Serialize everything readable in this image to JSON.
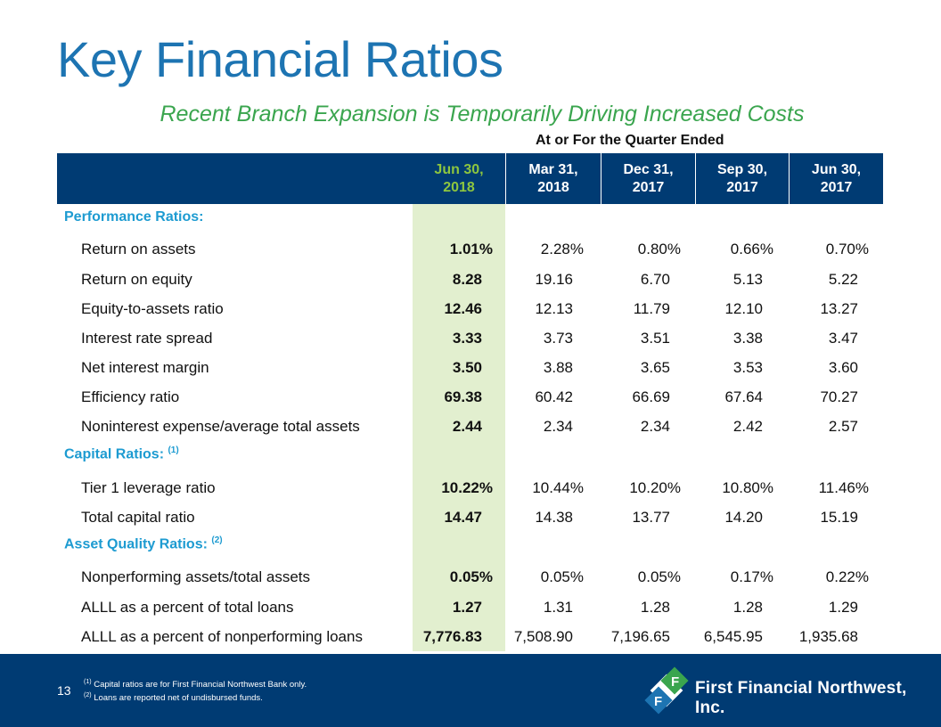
{
  "title": "Key Financial Ratios",
  "subtitle": "Recent Branch Expansion is Temporarily Driving Increased Costs",
  "period_header": "At or For the Quarter Ended",
  "columns": [
    "Jun 30,\n2018",
    "Mar 31,\n2018",
    "Dec 31,\n2017",
    "Sep 30,\n2017",
    "Jun 30,\n2017"
  ],
  "sections": [
    {
      "label": "Performance Ratios:",
      "footnote": ""
    },
    {
      "label": "Capital Ratios:",
      "footnote": "(1)"
    },
    {
      "label": "Asset Quality Ratios:",
      "footnote": "(2)"
    }
  ],
  "rows": [
    {
      "label": "Return on assets",
      "values": [
        "1.01%",
        "2.28%",
        "0.80%",
        "0.66%",
        "0.70%"
      ]
    },
    {
      "label": "Return on equity",
      "values": [
        "8.28",
        "19.16",
        "6.70",
        "5.13",
        "5.22"
      ]
    },
    {
      "label": "Equity-to-assets ratio",
      "values": [
        "12.46",
        "12.13",
        "11.79",
        "12.10",
        "13.27"
      ]
    },
    {
      "label": "Interest rate spread",
      "values": [
        "3.33",
        "3.73",
        "3.51",
        "3.38",
        "3.47"
      ]
    },
    {
      "label": "Net interest margin",
      "values": [
        "3.50",
        "3.88",
        "3.65",
        "3.53",
        "3.60"
      ]
    },
    {
      "label": "Efficiency ratio",
      "values": [
        "69.38",
        "60.42",
        "66.69",
        "67.64",
        "70.27"
      ]
    },
    {
      "label": "Noninterest expense/average total assets",
      "values": [
        "2.44",
        "2.34",
        "2.34",
        "2.42",
        "2.57"
      ]
    },
    {
      "label": "Tier 1 leverage ratio",
      "values": [
        "10.22%",
        "10.44%",
        "10.20%",
        "10.80%",
        "11.46%"
      ]
    },
    {
      "label": "Total capital ratio",
      "values": [
        "14.47",
        "14.38",
        "13.77",
        "14.20",
        "15.19"
      ]
    },
    {
      "label": "Nonperforming assets/total assets",
      "values": [
        "0.05%",
        "0.05%",
        "0.05%",
        "0.17%",
        "0.22%"
      ]
    },
    {
      "label": "ALLL as a percent of total loans",
      "values": [
        "1.27",
        "1.31",
        "1.28",
        "1.28",
        "1.29"
      ]
    },
    {
      "label": "ALLL as a percent of nonperforming loans",
      "values": [
        "7,776.83",
        "7,508.90",
        "7,196.65",
        "6,545.95",
        "1,935.68"
      ]
    }
  ],
  "footer": {
    "page_number": "13",
    "footnotes": [
      {
        "marker": "(1)",
        "text": "Capital ratios are for First Financial Northwest Bank only."
      },
      {
        "marker": "(2)",
        "text": "Loans are reported net of undisbursed funds."
      }
    ],
    "company": "First Financial Northwest, Inc."
  },
  "colors": {
    "title": "#1d74b2",
    "subtitle": "#3aa54e",
    "header_bg": "#003b73",
    "highlight_column": "#e2efcf",
    "section_label": "#1d9bd1",
    "first_header_text": "#8dc63f"
  }
}
